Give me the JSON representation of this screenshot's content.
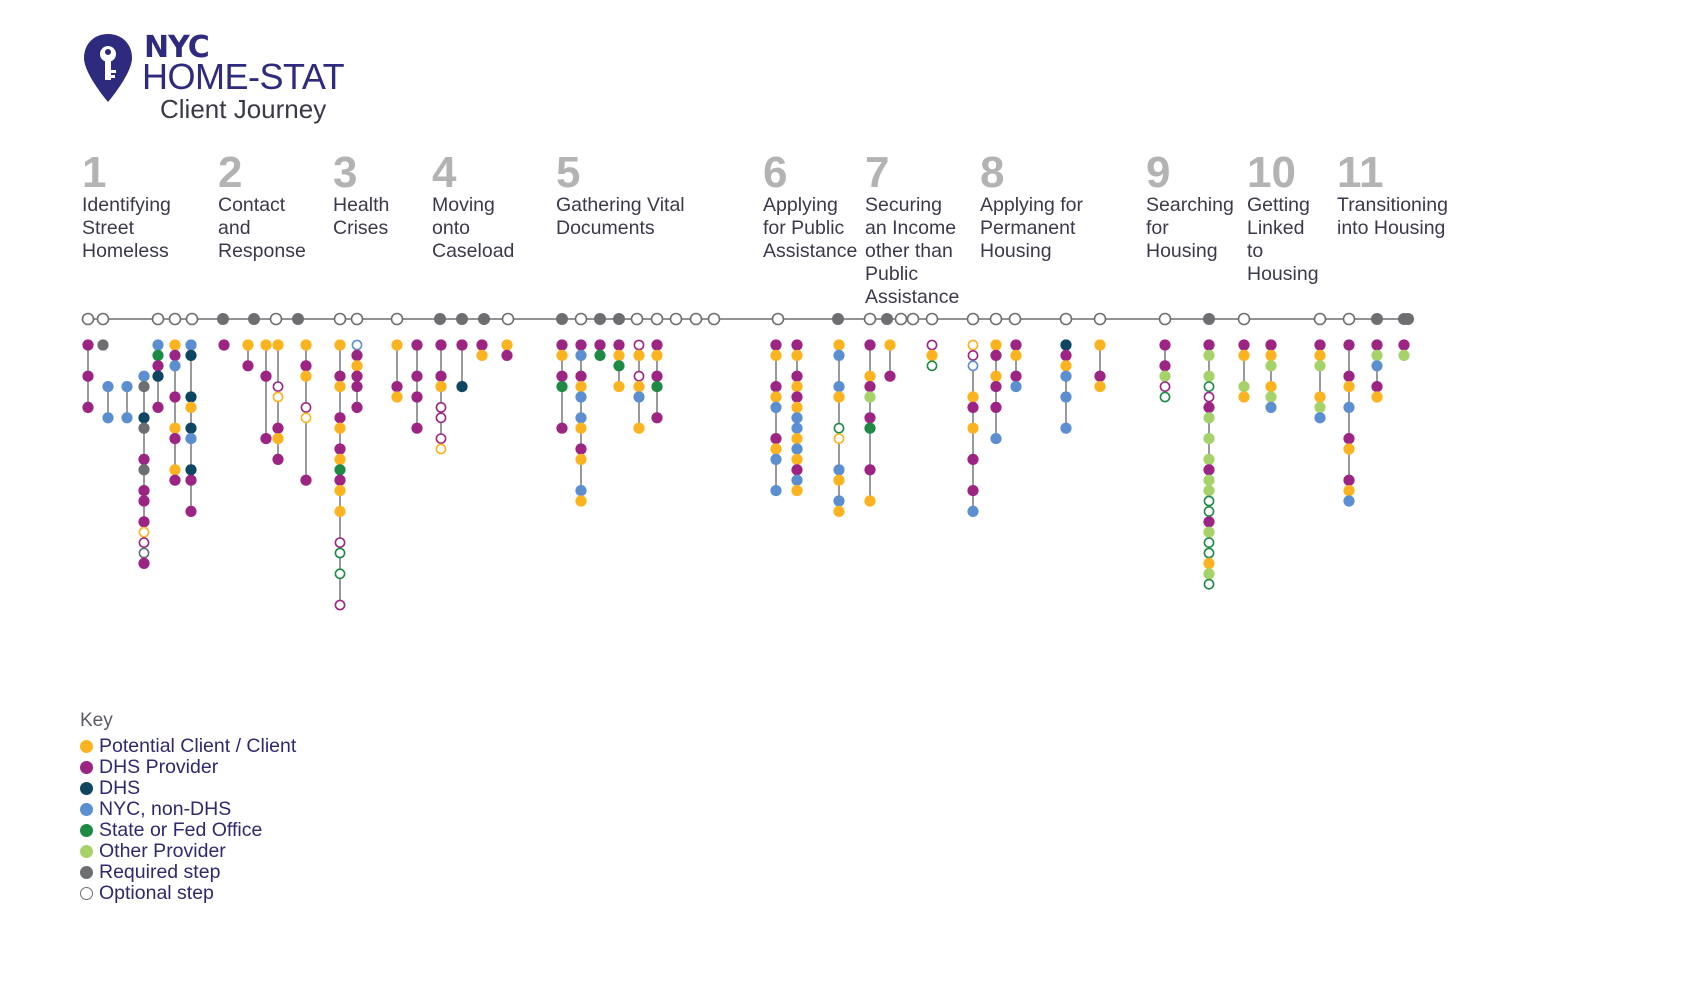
{
  "header": {
    "brand": "NYC",
    "title": "HOME-STAT",
    "subtitle": "Client Journey",
    "logo_icon": "map-pin-key-icon"
  },
  "colors": {
    "brand": "#2e2a7e",
    "client": "#fbb31f",
    "dhs_provider": "#9c2583",
    "dhs": "#0e4561",
    "nyc_non_dhs": "#5b8fd0",
    "state_fed": "#1e8a46",
    "other_provider": "#a6d26a",
    "required": "#6d6e71",
    "optional": "#ffffff",
    "line": "#6d6e71"
  },
  "stages": [
    {
      "number": "1",
      "label": "Identifying\nStreet\nHomeless"
    },
    {
      "number": "2",
      "label": "Contact\nand\nResponse"
    },
    {
      "number": "3",
      "label": "Health\nCrises"
    },
    {
      "number": "4",
      "label": "Moving\nonto\nCaseload"
    },
    {
      "number": "5",
      "label": "Gathering Vital\nDocuments"
    },
    {
      "number": "6",
      "label": "Applying\nfor Public\nAssistance"
    },
    {
      "number": "7",
      "label": "Securing\nan Income\nother than\nPublic\nAssistance"
    },
    {
      "number": "8",
      "label": "Applying for\nPermanent\nHousing"
    },
    {
      "number": "9",
      "label": "Searching\nfor\nHousing"
    },
    {
      "number": "10",
      "label": "Getting\nLinked\nto\nHousing"
    },
    {
      "number": "11",
      "label": "Transitioning\ninto Housing"
    }
  ],
  "milestones": [
    "opt",
    "opt",
    "opt",
    "opt",
    "opt",
    "req",
    "req",
    "opt",
    "req",
    "opt",
    "opt",
    "opt",
    "req",
    "req",
    "req",
    "opt",
    "req",
    "opt",
    "req",
    "req",
    "opt",
    "opt",
    "opt",
    "opt",
    "opt",
    "opt",
    "req",
    "opt",
    "req",
    "opt",
    "opt",
    "opt",
    "opt",
    "opt",
    "opt",
    "opt",
    "opt",
    "opt",
    "req",
    "opt",
    "opt",
    "opt",
    "req",
    "req",
    "req"
  ],
  "key": {
    "title": "Key",
    "items": [
      {
        "label": "Potential Client / Client",
        "type": "client"
      },
      {
        "label": "DHS Provider",
        "type": "dhs_provider"
      },
      {
        "label": "DHS",
        "type": "dhs"
      },
      {
        "label": "NYC, non-DHS",
        "type": "nyc_non_dhs"
      },
      {
        "label": "State or Fed Office",
        "type": "state_fed"
      },
      {
        "label": "Other Provider",
        "type": "other_provider"
      },
      {
        "label": "Required step",
        "type": "required"
      },
      {
        "label": "Optional step",
        "type": "optional"
      }
    ]
  },
  "columns": [
    {
      "stage": 1,
      "nodes": [
        "P",
        "",
        "",
        "P",
        "",
        "",
        "P"
      ]
    },
    {
      "stage": 1,
      "nodes": [
        "K"
      ]
    },
    {
      "stage": 1,
      "nodes": [
        "",
        "",
        "",
        "",
        "N",
        "",
        "",
        "N"
      ]
    },
    {
      "stage": 1,
      "nodes": [
        "",
        "",
        "",
        "",
        "N",
        "",
        "",
        "N"
      ]
    },
    {
      "stage": 1,
      "nodes": [
        "",
        "",
        "",
        "N",
        "o",
        "",
        "",
        "D",
        "o",
        "",
        "",
        "P",
        "o",
        "",
        "P",
        "P",
        "",
        "P",
        "yo",
        "po",
        "ko",
        "P"
      ]
    },
    {
      "stage": 1,
      "nodes": [
        "N",
        "G",
        "P",
        "D",
        "",
        "",
        "P"
      ]
    },
    {
      "stage": 1,
      "nodes": [
        "Y",
        "P",
        "N",
        "",
        "",
        "P",
        "",
        "",
        "Y",
        "P",
        "",
        "",
        "Y",
        "P"
      ]
    },
    {
      "stage": 1,
      "nodes": [
        "N",
        "D",
        "",
        "",
        "",
        "D",
        "Y",
        "",
        "D",
        "N",
        "",
        "",
        "D",
        "P",
        "",
        "",
        "P"
      ]
    },
    {
      "stage": 2,
      "nodes": [
        "P"
      ]
    },
    {
      "stage": 2,
      "nodes": [
        "Y",
        "",
        "P"
      ]
    },
    {
      "stage": 2,
      "nodes": [
        "Y",
        "",
        "",
        "P",
        "",
        "",
        "",
        "",
        "",
        "P"
      ]
    },
    {
      "stage": 2,
      "nodes": [
        "Y",
        "",
        "",
        "",
        "po",
        "yo",
        "",
        "",
        "P",
        "Y",
        "",
        "P"
      ]
    },
    {
      "stage": 2,
      "nodes": [
        "Y",
        "",
        "P",
        "Y",
        "",
        "",
        "po",
        "yo",
        "",
        "",
        "",
        "",
        "",
        "P"
      ]
    },
    {
      "stage": 3,
      "nodes": [
        "Y",
        "",
        "",
        "P",
        "Y",
        "",
        "",
        "P",
        "Y",
        "",
        "P",
        "Y",
        "G",
        "P",
        "Y",
        "",
        "Y",
        "",
        "",
        "po",
        "go",
        "",
        "go",
        "",
        "",
        "po"
      ]
    },
    {
      "stage": 3,
      "nodes": [
        "no",
        "P",
        "Y",
        "P",
        "P",
        "",
        "P"
      ]
    },
    {
      "stage": 3,
      "nodes": [
        "Y",
        "",
        "",
        "",
        "P",
        "Y"
      ]
    },
    {
      "stage": 3,
      "nodes": [
        "P",
        "",
        "",
        "P",
        "",
        "P",
        "",
        "",
        "P"
      ]
    },
    {
      "stage": 4,
      "nodes": [
        "P",
        "",
        "",
        "P",
        "Y",
        "",
        "po",
        "po",
        "",
        "po",
        "yo"
      ]
    },
    {
      "stage": 4,
      "nodes": [
        "P",
        "",
        "",
        "",
        "D"
      ]
    },
    {
      "stage": 4,
      "nodes": [
        "P",
        "Y"
      ]
    },
    {
      "stage": 5,
      "nodes": [
        "Y",
        "P"
      ]
    },
    {
      "stage": 5,
      "nodes": [
        "P",
        "Y",
        "",
        "P",
        "G",
        "",
        "",
        "",
        "P"
      ]
    },
    {
      "stage": 5,
      "nodes": [
        "P",
        "N",
        "",
        "P",
        "Y",
        "N",
        "",
        "N",
        "Y",
        "",
        "P",
        "Y",
        "",
        "",
        "N",
        "Y"
      ]
    },
    {
      "stage": 5,
      "nodes": [
        "P",
        "G"
      ]
    },
    {
      "stage": 5,
      "nodes": [
        "P",
        "Y",
        "G",
        "",
        "Y"
      ]
    },
    {
      "stage": 5,
      "nodes": [
        "po",
        "Y",
        "",
        "po",
        "Y",
        "N",
        "",
        "",
        "Y"
      ]
    },
    {
      "stage": 5,
      "nodes": [
        "P",
        "Y",
        "",
        "P",
        "G",
        "",
        "",
        "P"
      ]
    },
    {
      "stage": 6,
      "nodes": [
        "P",
        "Y",
        "",
        "",
        "P",
        "Y",
        "N",
        "",
        "",
        "P",
        "Y",
        "N",
        "",
        "",
        "N"
      ]
    },
    {
      "stage": 6,
      "nodes": [
        "P",
        "Y",
        "",
        "P",
        "Y",
        "P",
        "Y",
        "N",
        "N",
        "Y",
        "N",
        "Y",
        "P",
        "N",
        "Y"
      ]
    },
    {
      "stage": 7,
      "nodes": [
        "Y",
        "N",
        "",
        "",
        "N",
        "Y",
        "",
        "",
        "go",
        "yo",
        "",
        "",
        "N",
        "Y",
        "",
        "N",
        "Y"
      ]
    },
    {
      "stage": 7,
      "nodes": [
        "P",
        "",
        "",
        "Y",
        "P",
        "O",
        "",
        "P",
        "G",
        "",
        "",
        "",
        "P",
        "",
        "",
        "Y"
      ]
    },
    {
      "stage": 7,
      "nodes": [
        "Y",
        "",
        "",
        "P"
      ]
    },
    {
      "stage": 8,
      "nodes": [
        "po",
        "Y",
        "go"
      ]
    },
    {
      "stage": 8,
      "nodes": [
        "yo",
        "po",
        "no",
        "",
        "",
        "Y",
        "P",
        "",
        "Y",
        "",
        "",
        "P",
        "",
        "",
        "P",
        "",
        "N"
      ]
    },
    {
      "stage": 8,
      "nodes": [
        "Y",
        "P",
        "",
        "Y",
        "P",
        "",
        "P",
        "",
        "",
        "N"
      ]
    },
    {
      "stage": 8,
      "nodes": [
        "P",
        "Y",
        "",
        "P",
        "N"
      ]
    },
    {
      "stage": 8,
      "nodes": [
        "D",
        "P",
        "Y",
        "N",
        "",
        "N",
        "",
        "",
        "N"
      ]
    },
    {
      "stage": 8,
      "nodes": [
        "Y",
        "",
        "",
        "P",
        "Y"
      ]
    },
    {
      "stage": 9,
      "nodes": [
        "P",
        "",
        "P",
        "O",
        "po",
        "go"
      ]
    },
    {
      "stage": 9,
      "nodes": [
        "P",
        "O",
        "",
        "O",
        "go",
        "po",
        "P",
        "O",
        "",
        "O",
        "",
        "O",
        "P",
        "O",
        "O",
        "go",
        "go",
        "P",
        "O",
        "go",
        "go",
        "Y",
        "O",
        "go"
      ]
    },
    {
      "stage": 10,
      "nodes": [
        "P",
        "Y",
        "",
        "",
        "O",
        "Y"
      ]
    },
    {
      "stage": 10,
      "nodes": [
        "P",
        "Y",
        "O",
        "",
        "Y",
        "O",
        "N"
      ]
    },
    {
      "stage": 11,
      "nodes": [
        "P",
        "Y",
        "O",
        "",
        "",
        "Y",
        "O",
        "N"
      ]
    },
    {
      "stage": 11,
      "nodes": [
        "P",
        "",
        "",
        "P",
        "Y",
        "",
        "N",
        "",
        "",
        "P",
        "Y",
        "",
        "",
        "P",
        "Y",
        "N"
      ]
    },
    {
      "stage": 11,
      "nodes": [
        "P",
        "O",
        "N",
        "",
        "P",
        "Y"
      ]
    },
    {
      "stage": 11,
      "nodes": [
        "P",
        "O"
      ]
    }
  ]
}
